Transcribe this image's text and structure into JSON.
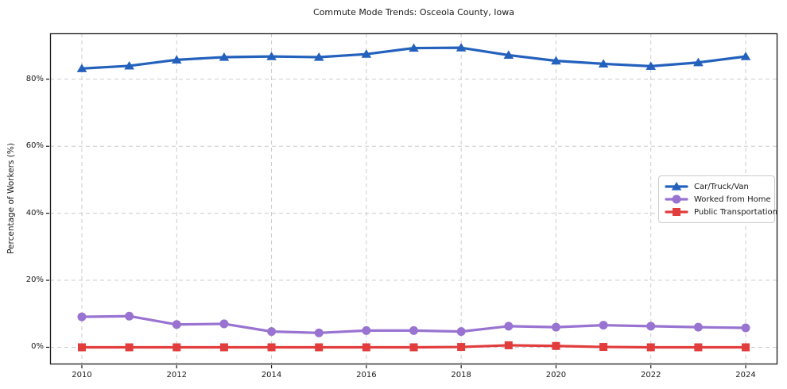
{
  "chart_data": {
    "type": "line",
    "title": "Commute Mode Trends: Osceola County, Iowa",
    "xlabel": "",
    "ylabel": "Percentage of Workers (%)",
    "x": [
      2010,
      2011,
      2012,
      2013,
      2014,
      2015,
      2016,
      2017,
      2018,
      2019,
      2020,
      2021,
      2022,
      2023,
      2024
    ],
    "x_ticks": [
      2010,
      2012,
      2014,
      2016,
      2018,
      2020,
      2022,
      2024
    ],
    "x_tick_labels": [
      "2010",
      "2012",
      "2014",
      "2016",
      "2018",
      "2020",
      "2022",
      "2024"
    ],
    "y_ticks": [
      0,
      20,
      40,
      60,
      80
    ],
    "y_tick_labels": [
      "0%",
      "20%",
      "40%",
      "60%",
      "80%"
    ],
    "xlim": [
      2009.33,
      2024.67
    ],
    "ylim": [
      -5.1,
      93.7
    ],
    "grid": true,
    "grid_style": "dashed",
    "legend_position": "center-right",
    "series": [
      {
        "name": "Car/Truck/Van",
        "color": "#2361bd",
        "marker": "triangle",
        "values": [
          83.2,
          84.0,
          85.8,
          86.6,
          86.8,
          86.6,
          87.5,
          89.3,
          89.4,
          87.2,
          85.5,
          84.6,
          83.9,
          85.0,
          86.8
        ]
      },
      {
        "name": "Worked from Home",
        "color": "#9873d1",
        "marker": "circle",
        "values": [
          9.1,
          9.3,
          6.8,
          7.0,
          4.7,
          4.3,
          5.0,
          5.0,
          4.7,
          6.3,
          6.0,
          6.6,
          6.3,
          6.0,
          5.8
        ]
      },
      {
        "name": "Public Transportation",
        "color": "#e23d3d",
        "marker": "square",
        "values": [
          0.0,
          0.0,
          0.0,
          0.0,
          0.0,
          0.0,
          0.0,
          0.0,
          0.1,
          0.6,
          0.4,
          0.1,
          0.0,
          0.0,
          0.0
        ]
      }
    ],
    "colors": {
      "grid": "#cccccc",
      "spine": "#1a1a1a",
      "background": "#ffffff"
    }
  }
}
